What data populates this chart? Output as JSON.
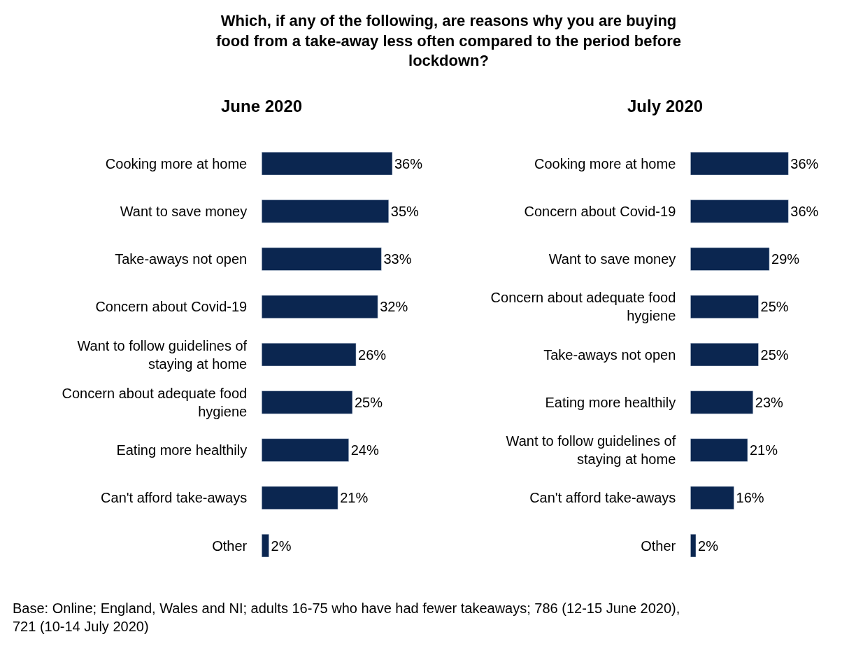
{
  "chart_data": [
    {
      "type": "bar",
      "orientation": "horizontal",
      "title": "Which, if any of the following, are reasons why you are buying food from a take-away less often compared to the period before lockdown?",
      "subtitle": "June 2020",
      "categories": [
        "Cooking more at home",
        "Want to save money",
        "Take-aways not open",
        "Concern about Covid-19",
        "Want to follow guidelines of staying at home",
        "Concern about adequate food hygiene",
        "Eating more healthily",
        "Can't afford take-aways",
        "Other"
      ],
      "values": [
        36,
        35,
        33,
        32,
        26,
        25,
        24,
        21,
        2
      ],
      "value_labels": [
        "36%",
        "35%",
        "33%",
        "32%",
        "26%",
        "25%",
        "24%",
        "21%",
        "2%"
      ],
      "color": "#0b2650",
      "annotations": [
        "Base: Online; England, Wales and NI; adults 16-75 who have had fewer takeaways; 786 (12-15 June 2020), 721 (10-14 July 2020)"
      ]
    },
    {
      "type": "bar",
      "orientation": "horizontal",
      "subtitle": "July 2020",
      "categories": [
        "Cooking more at home",
        "Concern about Covid-19",
        "Want to save money",
        "Concern about adequate food hygiene",
        "Take-aways not open",
        "Eating more healthily",
        "Want to follow guidelines of staying at home",
        "Can't afford take-aways",
        "Other"
      ],
      "values": [
        36,
        36,
        29,
        25,
        25,
        23,
        21,
        16,
        2
      ],
      "value_labels": [
        "36%",
        "36%",
        "29%",
        "25%",
        "25%",
        "23%",
        "21%",
        "16%",
        "2%"
      ],
      "color": "#0b2650"
    }
  ]
}
